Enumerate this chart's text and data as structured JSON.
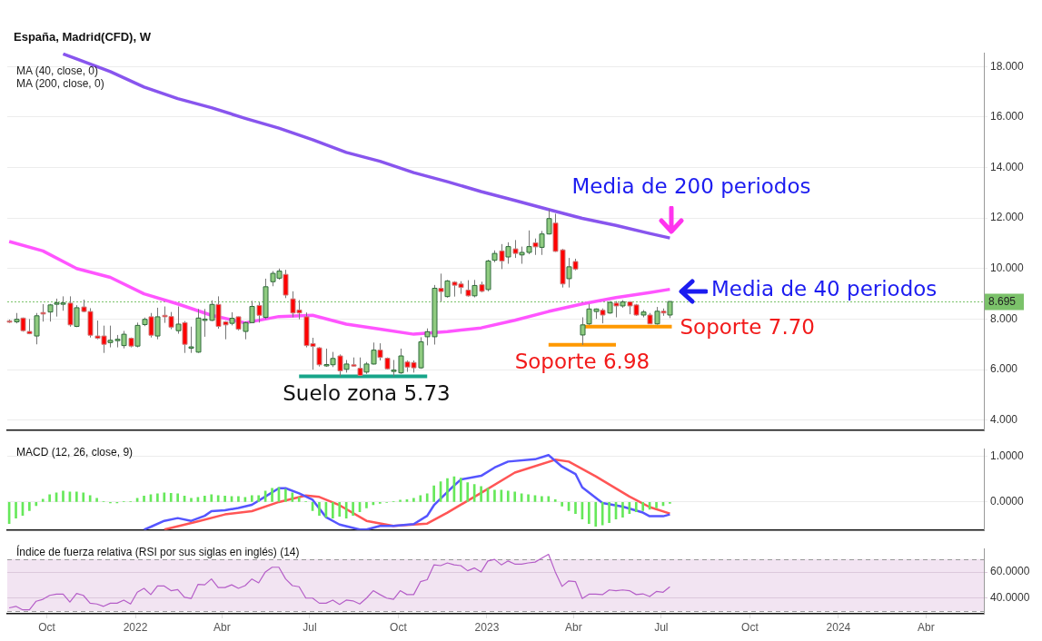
{
  "chart_data": [
    {
      "type": "candlestick",
      "title": "España, Madrid(CFD), W",
      "x": [
        "2021-08-23",
        "2021-08-30",
        "2021-09-06",
        "2021-09-13",
        "2021-09-20",
        "2021-09-27",
        "2021-10-04",
        "2021-10-11",
        "2021-10-18",
        "2021-10-25",
        "2021-11-01",
        "2021-11-08",
        "2021-11-15",
        "2021-11-22",
        "2021-11-29",
        "2021-12-06",
        "2021-12-13",
        "2021-12-20",
        "2021-12-27",
        "2022-01-03",
        "2022-01-10",
        "2022-01-17",
        "2022-01-24",
        "2022-01-31",
        "2022-02-07",
        "2022-02-14",
        "2022-02-21",
        "2022-02-28",
        "2022-03-07",
        "2022-03-14",
        "2022-03-21",
        "2022-03-28",
        "2022-04-04",
        "2022-04-11",
        "2022-04-18",
        "2022-04-25",
        "2022-05-02",
        "2022-05-09",
        "2022-05-16",
        "2022-05-23",
        "2022-05-30",
        "2022-06-06",
        "2022-06-13",
        "2022-06-20",
        "2022-06-27",
        "2022-07-04",
        "2022-07-11",
        "2022-07-18",
        "2022-07-25",
        "2022-08-01",
        "2022-08-08",
        "2022-08-15",
        "2022-08-22",
        "2022-08-29",
        "2022-09-05",
        "2022-09-12",
        "2022-09-19",
        "2022-09-26",
        "2022-10-03",
        "2022-10-10",
        "2022-10-17",
        "2022-10-24",
        "2022-10-31",
        "2022-11-07",
        "2022-11-14",
        "2022-11-21",
        "2022-11-28",
        "2022-12-05",
        "2022-12-12",
        "2022-12-19",
        "2022-12-26",
        "2023-01-02",
        "2023-01-09",
        "2023-01-16",
        "2023-01-23",
        "2023-01-30",
        "2023-02-06",
        "2023-02-13",
        "2023-02-20",
        "2023-02-27",
        "2023-03-06",
        "2023-03-13",
        "2023-03-20",
        "2023-03-27",
        "2023-04-03",
        "2023-04-10",
        "2023-04-17",
        "2023-04-24",
        "2023-05-01",
        "2023-05-08",
        "2023-05-15",
        "2023-05-22",
        "2023-05-29",
        "2023-06-05",
        "2023-06-12",
        "2023-06-19",
        "2023-06-26",
        "2023-07-03",
        "2023-07-10"
      ],
      "ohlc": [
        [
          7.93,
          7.98,
          7.85,
          7.9
        ],
        [
          7.89,
          8.24,
          7.83,
          7.99
        ],
        [
          8.04,
          8.06,
          7.5,
          7.54
        ],
        [
          7.51,
          8.0,
          7.4,
          7.42
        ],
        [
          7.33,
          8.24,
          7.0,
          8.13
        ],
        [
          8.26,
          8.59,
          7.9,
          8.2
        ],
        [
          8.28,
          8.6,
          7.9,
          8.56
        ],
        [
          8.6,
          8.81,
          8.1,
          8.64
        ],
        [
          8.62,
          8.9,
          8.33,
          8.64
        ],
        [
          8.63,
          8.9,
          7.7,
          7.77
        ],
        [
          7.71,
          8.55,
          7.68,
          8.45
        ],
        [
          8.48,
          8.77,
          8.27,
          8.3
        ],
        [
          8.3,
          8.43,
          7.27,
          7.36
        ],
        [
          7.33,
          7.94,
          7.2,
          7.24
        ],
        [
          7.33,
          7.74,
          6.66,
          7.0
        ],
        [
          7.07,
          7.74,
          6.88,
          7.16
        ],
        [
          7.16,
          7.37,
          6.88,
          7.2
        ],
        [
          6.95,
          7.53,
          6.84,
          7.4
        ],
        [
          7.24,
          7.27,
          6.88,
          6.93
        ],
        [
          6.93,
          7.86,
          6.88,
          7.75
        ],
        [
          7.78,
          8.06,
          7.72,
          7.99
        ],
        [
          8.09,
          8.24,
          7.27,
          7.36
        ],
        [
          7.33,
          8.45,
          7.2,
          8.09
        ],
        [
          8.15,
          8.5,
          7.85,
          8.09
        ],
        [
          8.1,
          8.28,
          7.6,
          7.68
        ],
        [
          7.54,
          8.5,
          7.42,
          7.8
        ],
        [
          7.86,
          7.92,
          6.66,
          7.0
        ],
        [
          6.86,
          7.7,
          6.66,
          6.9
        ],
        [
          6.69,
          8.4,
          6.66,
          8.04
        ],
        [
          7.98,
          8.4,
          7.3,
          8.0
        ],
        [
          7.95,
          8.74,
          7.92,
          8.58
        ],
        [
          8.58,
          8.9,
          7.62,
          7.71
        ],
        [
          7.89,
          7.92,
          7.2,
          7.77
        ],
        [
          7.83,
          8.27,
          7.75,
          8.03
        ],
        [
          8.09,
          8.1,
          7.55,
          7.6
        ],
        [
          7.51,
          7.9,
          7.2,
          7.86
        ],
        [
          7.86,
          8.72,
          7.84,
          8.5
        ],
        [
          8.54,
          8.66,
          7.86,
          8.15
        ],
        [
          8.07,
          9.6,
          8.0,
          9.28
        ],
        [
          9.48,
          9.9,
          9.3,
          9.81
        ],
        [
          9.62,
          10.0,
          9.56,
          9.9
        ],
        [
          9.77,
          9.95,
          8.83,
          8.95
        ],
        [
          8.8,
          9.1,
          8.07,
          8.24
        ],
        [
          8.36,
          8.75,
          7.99,
          8.24
        ],
        [
          8.09,
          8.26,
          6.88,
          6.95
        ],
        [
          7.03,
          7.26,
          6.0,
          6.92
        ],
        [
          6.86,
          6.89,
          6.12,
          6.19
        ],
        [
          6.19,
          6.83,
          6.11,
          6.2
        ],
        [
          6.19,
          6.7,
          6.1,
          6.44
        ],
        [
          6.54,
          6.6,
          5.73,
          5.95
        ],
        [
          6.01,
          6.38,
          5.88,
          6.22
        ],
        [
          6.19,
          6.48,
          6.12,
          6.15
        ],
        [
          6.05,
          6.48,
          5.73,
          5.77
        ],
        [
          5.9,
          6.3,
          5.83,
          6.22
        ],
        [
          6.22,
          7.07,
          6.2,
          6.77
        ],
        [
          6.77,
          7.04,
          6.36,
          6.48
        ],
        [
          6.45,
          6.48,
          6.01,
          6.03
        ],
        [
          5.97,
          6.38,
          5.73,
          5.98
        ],
        [
          5.87,
          6.83,
          5.83,
          6.54
        ],
        [
          6.3,
          6.36,
          5.91,
          6.1
        ],
        [
          6.28,
          6.36,
          5.88,
          6.07
        ],
        [
          6.07,
          7.28,
          6.03,
          7.1
        ],
        [
          7.3,
          7.63,
          6.96,
          7.5
        ],
        [
          7.3,
          9.35,
          6.99,
          9.22
        ],
        [
          9.22,
          9.8,
          8.7,
          9.09
        ],
        [
          8.89,
          9.55,
          8.85,
          9.51
        ],
        [
          9.46,
          9.5,
          8.89,
          9.34
        ],
        [
          9.39,
          9.5,
          9.0,
          9.25
        ],
        [
          9.15,
          9.54,
          8.89,
          8.92
        ],
        [
          8.92,
          9.55,
          8.86,
          9.33
        ],
        [
          9.36,
          9.48,
          9.06,
          9.1
        ],
        [
          9.17,
          10.35,
          9.1,
          10.3
        ],
        [
          10.33,
          10.72,
          10.25,
          10.6
        ],
        [
          10.7,
          10.97,
          9.98,
          10.3
        ],
        [
          10.46,
          11.04,
          10.19,
          10.87
        ],
        [
          10.78,
          11.13,
          10.42,
          10.6
        ],
        [
          10.54,
          10.87,
          10.19,
          10.64
        ],
        [
          10.64,
          11.51,
          10.57,
          10.87
        ],
        [
          11.02,
          11.19,
          10.54,
          10.86
        ],
        [
          10.84,
          11.49,
          10.54,
          11.37
        ],
        [
          11.37,
          12.35,
          11.35,
          11.98
        ],
        [
          11.8,
          12.17,
          10.66,
          10.68
        ],
        [
          10.74,
          10.78,
          9.25,
          9.39
        ],
        [
          9.6,
          10.42,
          9.25,
          10.07
        ],
        [
          10.28,
          10.39,
          9.93,
          9.98
        ],
        [
          7.37,
          8.07,
          6.98,
          7.77
        ],
        [
          7.81,
          8.6,
          7.77,
          8.4
        ],
        [
          8.3,
          8.42,
          8.01,
          8.4
        ],
        [
          8.35,
          8.42,
          7.83,
          8.16
        ],
        [
          8.24,
          8.71,
          8.21,
          8.66
        ],
        [
          8.63,
          8.71,
          8.07,
          8.52
        ],
        [
          8.52,
          8.75,
          8.45,
          8.68
        ],
        [
          8.68,
          8.71,
          8.19,
          8.52
        ],
        [
          8.56,
          8.6,
          8.13,
          8.16
        ],
        [
          8.16,
          8.36,
          8.07,
          8.28
        ],
        [
          8.16,
          8.24,
          7.81,
          7.81
        ],
        [
          7.81,
          8.48,
          7.78,
          8.31
        ],
        [
          8.31,
          8.42,
          8.13,
          8.24
        ],
        [
          8.16,
          8.71,
          8.04,
          8.695
        ]
      ],
      "series": [
        {
          "type": "line",
          "color": "#ff55ff",
          "x": [
            "2021-08-23",
            "2021-09-27",
            "2021-11-01",
            "2021-12-06",
            "2022-01-10",
            "2022-02-14",
            "2022-03-21",
            "2022-04-25",
            "2022-05-30",
            "2022-07-04",
            "2022-08-08",
            "2022-09-12",
            "2022-10-17",
            "2022-11-21",
            "2022-12-26",
            "2023-01-30",
            "2023-03-06",
            "2023-04-10",
            "2023-05-15",
            "2023-06-19",
            "2023-07-10"
          ],
          "values": [
            11.07,
            10.7,
            10.0,
            9.65,
            9.0,
            8.6,
            8.15,
            7.85,
            8.1,
            8.15,
            7.8,
            7.6,
            7.4,
            7.5,
            7.65,
            7.95,
            8.3,
            8.6,
            8.85,
            9.05,
            9.18
          ]
        },
        {
          "type": "line",
          "color": "#8855ee",
          "x": [
            "2021-10-18",
            "2021-11-01",
            "2021-12-06",
            "2022-01-10",
            "2022-02-14",
            "2022-03-21",
            "2022-04-25",
            "2022-05-30",
            "2022-07-04",
            "2022-08-08",
            "2022-09-12",
            "2022-10-17",
            "2022-11-21",
            "2022-12-26",
            "2023-01-30",
            "2023-03-06",
            "2023-04-10",
            "2023-05-15",
            "2023-06-19",
            "2023-07-10"
          ],
          "values": [
            18.5,
            18.3,
            17.8,
            17.19,
            16.73,
            16.37,
            15.95,
            15.56,
            15.1,
            14.6,
            14.25,
            13.8,
            13.44,
            13.05,
            12.7,
            12.34,
            11.99,
            11.71,
            11.39,
            11.21
          ]
        },
        {
          "type": "line",
          "color": "#17a589",
          "x": [
            "2022-06-20",
            "2022-10-31"
          ],
          "values": [
            5.73,
            5.73
          ]
        },
        {
          "type": "line",
          "color": "#ff9900",
          "x": [
            "2023-03-06",
            "2023-05-15"
          ],
          "values": [
            6.98,
            6.98
          ]
        },
        {
          "type": "line",
          "color": "#ff9900",
          "x": [
            "2023-04-10",
            "2023-07-12"
          ],
          "values": [
            7.7,
            7.7
          ]
        }
      ],
      "ref_lines": [
        {
          "axis": "y",
          "value": 8.695,
          "label": "8.695",
          "color": "#7bc26a",
          "line_style": "dotted"
        }
      ],
      "annotations": [
        "MA (40, close, 0)",
        "MA (200, close, 0)",
        "Media de 200 periodos",
        "Media de 40 periodos",
        {
          "text": "Suelo zona 5.73",
          "x": "2022-08-29",
          "y": 5.73
        },
        {
          "text": "Soporte 6.98",
          "x": "2023-04-10",
          "y": 6.98
        },
        {
          "text": "Soporte 7.70",
          "x": "2023-07-12",
          "y": 7.7
        }
      ],
      "xlim": [
        "2021-08-21",
        "2024-05-31"
      ],
      "ylim": [
        3.6,
        18.55
      ],
      "yticks": [
        {
          "value": 4,
          "label": "4.000"
        },
        {
          "value": 6,
          "label": "6.000"
        },
        {
          "value": 8,
          "label": "8.000"
        },
        {
          "value": 10,
          "label": "10.000"
        },
        {
          "value": 12,
          "label": "12.000"
        },
        {
          "value": 14,
          "label": "14.000"
        },
        {
          "value": 16,
          "label": "16.000"
        },
        {
          "value": 18,
          "label": "18.000"
        }
      ],
      "grid": "y",
      "tick_labels": "y"
    },
    {
      "type": "bar",
      "title": "MACD (12, 26, close, 9)",
      "x": [
        "2021-08-23",
        "2021-08-30",
        "2021-09-06",
        "2021-09-13",
        "2021-09-20",
        "2021-09-27",
        "2021-10-04",
        "2021-10-11",
        "2021-10-18",
        "2021-10-25",
        "2021-11-01",
        "2021-11-08",
        "2021-11-15",
        "2021-11-22",
        "2021-11-29",
        "2021-12-06",
        "2021-12-13",
        "2021-12-20",
        "2021-12-27",
        "2022-01-03",
        "2022-01-10",
        "2022-01-17",
        "2022-01-24",
        "2022-01-31",
        "2022-02-07",
        "2022-02-14",
        "2022-02-21",
        "2022-02-28",
        "2022-03-07",
        "2022-03-14",
        "2022-03-21",
        "2022-03-28",
        "2022-04-04",
        "2022-04-11",
        "2022-04-18",
        "2022-04-25",
        "2022-05-02",
        "2022-05-09",
        "2022-05-16",
        "2022-05-23",
        "2022-05-30",
        "2022-06-06",
        "2022-06-13",
        "2022-06-20",
        "2022-06-27",
        "2022-07-04",
        "2022-07-11",
        "2022-07-18",
        "2022-07-25",
        "2022-08-01",
        "2022-08-08",
        "2022-08-15",
        "2022-08-22",
        "2022-08-29",
        "2022-09-05",
        "2022-09-12",
        "2022-09-19",
        "2022-09-26",
        "2022-10-03",
        "2022-10-10",
        "2022-10-17",
        "2022-10-24",
        "2022-10-31",
        "2022-11-07",
        "2022-11-14",
        "2022-11-21",
        "2022-11-28",
        "2022-12-05",
        "2022-12-12",
        "2022-12-19",
        "2022-12-26",
        "2023-01-02",
        "2023-01-09",
        "2023-01-16",
        "2023-01-23",
        "2023-01-30",
        "2023-02-06",
        "2023-02-13",
        "2023-02-20",
        "2023-02-27",
        "2023-03-06",
        "2023-03-13",
        "2023-03-20",
        "2023-03-27",
        "2023-04-03",
        "2023-04-10",
        "2023-04-17",
        "2023-04-24",
        "2023-05-01",
        "2023-05-08",
        "2023-05-15",
        "2023-05-22",
        "2023-05-29",
        "2023-06-05",
        "2023-06-12",
        "2023-06-19",
        "2023-06-26",
        "2023-07-03",
        "2023-07-10"
      ],
      "series": [
        {
          "color": "#66e85a",
          "values": [
            -0.47,
            -0.35,
            -0.29,
            -0.19,
            -0.08,
            0.06,
            0.16,
            0.2,
            0.24,
            0.22,
            0.22,
            0.2,
            0.14,
            0.08,
            0.01,
            -0.02,
            -0.02,
            0.01,
            0.01,
            0.08,
            0.13,
            0.16,
            0.18,
            0.2,
            0.19,
            0.18,
            0.13,
            0.08,
            0.1,
            0.13,
            0.16,
            0.14,
            0.13,
            0.12,
            0.12,
            0.1,
            0.14,
            0.14,
            0.24,
            0.3,
            0.32,
            0.28,
            0.2,
            0.1,
            0.01,
            -0.19,
            -0.29,
            -0.33,
            -0.35,
            -0.31,
            -0.35,
            -0.29,
            -0.21,
            -0.13,
            -0.06,
            -0.03,
            -0.01,
            0.01,
            0.04,
            0.05,
            0.08,
            0.14,
            0.18,
            0.35,
            0.44,
            0.51,
            0.55,
            0.52,
            0.42,
            0.38,
            0.34,
            0.3,
            0.26,
            0.26,
            0.24,
            0.22,
            0.18,
            0.16,
            0.14,
            0.12,
            0.12,
            0.05,
            -0.09,
            -0.19,
            -0.25,
            -0.37,
            -0.47,
            -0.53,
            -0.5,
            -0.45,
            -0.37,
            -0.33,
            -0.25,
            -0.21,
            -0.19,
            -0.16,
            -0.13,
            -0.08,
            -0.03
          ]
        },
        {
          "type": "line",
          "color": "#5555ff",
          "x": [
            "2022-01-10",
            "2022-01-17",
            "2022-01-31",
            "2022-02-14",
            "2022-02-28",
            "2022-03-14",
            "2022-03-21",
            "2022-04-04",
            "2022-04-18",
            "2022-05-02",
            "2022-05-16",
            "2022-05-30",
            "2022-06-06",
            "2022-06-20",
            "2022-07-04",
            "2022-07-18",
            "2022-08-01",
            "2022-08-22",
            "2022-08-29",
            "2022-09-12",
            "2022-09-26",
            "2022-10-17",
            "2022-10-31",
            "2022-11-07",
            "2022-11-28",
            "2022-12-05",
            "2022-12-26",
            "2023-01-09",
            "2023-01-23",
            "2023-02-20",
            "2023-03-06",
            "2023-03-20",
            "2023-04-03",
            "2023-04-10",
            "2023-05-01",
            "2023-05-22",
            "2023-06-12",
            "2023-06-19",
            "2023-07-03",
            "2023-07-10"
          ],
          "values": [
            -0.6,
            -0.54,
            -0.41,
            -0.35,
            -0.41,
            -0.3,
            -0.2,
            -0.18,
            -0.13,
            -0.06,
            0.12,
            0.3,
            0.3,
            0.19,
            0.05,
            -0.33,
            -0.49,
            -0.6,
            -0.6,
            -0.52,
            -0.52,
            -0.48,
            -0.3,
            -0.07,
            0.36,
            0.49,
            0.57,
            0.75,
            0.88,
            0.93,
            1.02,
            0.77,
            0.61,
            0.32,
            -0.02,
            -0.1,
            -0.23,
            -0.31,
            -0.31,
            -0.27
          ]
        },
        {
          "type": "line",
          "color": "#ff5555",
          "x": [
            "2022-01-31",
            "2022-03-07",
            "2022-04-04",
            "2022-05-02",
            "2022-05-30",
            "2022-06-27",
            "2022-07-11",
            "2022-08-01",
            "2022-08-29",
            "2022-09-26",
            "2022-10-31",
            "2022-11-21",
            "2022-12-26",
            "2023-01-30",
            "2023-03-13",
            "2023-03-27",
            "2023-04-24",
            "2023-05-29",
            "2023-06-19",
            "2023-07-10"
          ],
          "values": [
            -0.6,
            -0.42,
            -0.27,
            -0.2,
            0.0,
            0.14,
            0.11,
            -0.07,
            -0.41,
            -0.52,
            -0.47,
            -0.23,
            0.2,
            0.64,
            0.92,
            0.88,
            0.56,
            0.12,
            -0.11,
            -0.25
          ]
        }
      ],
      "xlim": [
        "2021-08-21",
        "2024-05-31"
      ],
      "ylim": [
        -0.61,
        1.16
      ],
      "yticks": [
        {
          "value": 0,
          "label": "0.0000"
        },
        {
          "value": 1,
          "label": "1.0000"
        }
      ],
      "grid": "y",
      "tick_labels": "y"
    },
    {
      "type": "line",
      "title": "Índice de fuerza relativa (RSI por sus siglas en inglés) (14)",
      "color": "#b55ec8",
      "x": [
        "2021-08-23",
        "2021-08-30",
        "2021-09-06",
        "2021-09-13",
        "2021-09-20",
        "2021-09-27",
        "2021-10-04",
        "2021-10-11",
        "2021-10-18",
        "2021-10-25",
        "2021-11-01",
        "2021-11-08",
        "2021-11-15",
        "2021-11-22",
        "2021-11-29",
        "2021-12-06",
        "2021-12-13",
        "2021-12-20",
        "2021-12-27",
        "2022-01-03",
        "2022-01-10",
        "2022-01-17",
        "2022-01-24",
        "2022-01-31",
        "2022-02-07",
        "2022-02-14",
        "2022-02-21",
        "2022-02-28",
        "2022-03-07",
        "2022-03-14",
        "2022-03-21",
        "2022-03-28",
        "2022-04-04",
        "2022-04-11",
        "2022-04-18",
        "2022-04-25",
        "2022-05-02",
        "2022-05-09",
        "2022-05-16",
        "2022-05-23",
        "2022-05-30",
        "2022-06-06",
        "2022-06-13",
        "2022-06-20",
        "2022-06-27",
        "2022-07-04",
        "2022-07-11",
        "2022-07-18",
        "2022-07-25",
        "2022-08-01",
        "2022-08-08",
        "2022-08-15",
        "2022-08-22",
        "2022-08-29",
        "2022-09-05",
        "2022-09-12",
        "2022-09-19",
        "2022-09-26",
        "2022-10-03",
        "2022-10-10",
        "2022-10-17",
        "2022-10-24",
        "2022-10-31",
        "2022-11-07",
        "2022-11-14",
        "2022-11-21",
        "2022-11-28",
        "2022-12-05",
        "2022-12-12",
        "2022-12-19",
        "2022-12-26",
        "2023-01-02",
        "2023-01-09",
        "2023-01-16",
        "2023-01-23",
        "2023-01-30",
        "2023-02-06",
        "2023-02-13",
        "2023-02-20",
        "2023-02-27",
        "2023-03-06",
        "2023-03-13",
        "2023-03-20",
        "2023-03-27",
        "2023-04-03",
        "2023-04-10",
        "2023-04-17",
        "2023-04-24",
        "2023-05-01",
        "2023-05-08",
        "2023-05-15",
        "2023-05-22",
        "2023-05-29",
        "2023-06-05",
        "2023-06-12",
        "2023-06-19",
        "2023-06-26",
        "2023-07-03",
        "2023-07-10"
      ],
      "values": [
        32.5,
        33.7,
        31,
        31,
        37.6,
        39.1,
        42.1,
        43,
        43,
        37,
        43.6,
        42.1,
        36.1,
        35.5,
        33.7,
        36.1,
        36.1,
        38.5,
        35.5,
        44.5,
        47.5,
        42.7,
        49.3,
        49.3,
        45.7,
        46.6,
        40.6,
        39.7,
        50.5,
        50.2,
        54.7,
        48.1,
        48.1,
        50.2,
        47.5,
        49.6,
        54.7,
        51.7,
        60.1,
        63.7,
        63.7,
        54.7,
        49.6,
        48.7,
        40,
        40,
        36.1,
        36.1,
        38.5,
        35.2,
        38.5,
        37.9,
        35.5,
        40,
        45.7,
        42.7,
        40,
        39.1,
        45.7,
        42.7,
        42.7,
        52.6,
        54.1,
        65.5,
        64.9,
        67,
        65.5,
        64.9,
        61,
        63.1,
        60.1,
        68.5,
        69.7,
        65.5,
        68.5,
        66.1,
        66.1,
        67,
        67.6,
        70.6,
        73.6,
        60.1,
        49,
        53.2,
        52.6,
        39.7,
        43,
        43,
        42.7,
        46.3,
        45.7,
        46.3,
        45.7,
        42.7,
        43.3,
        41.2,
        45.1,
        44.5,
        48.7
      ],
      "bands": [
        {
          "axis": "y",
          "from": 30,
          "to": 70,
          "color": "#f2e4f2"
        }
      ],
      "ref_lines": [
        {
          "axis": "y",
          "value": 70,
          "color": "#999999",
          "line_style": "dashed"
        },
        {
          "axis": "y",
          "value": 30,
          "color": "#999999",
          "line_style": "dashed"
        }
      ],
      "xlim": [
        "2021-08-21",
        "2024-05-31"
      ],
      "xticks": [
        {
          "value": "2021-10-01",
          "label": "Oct"
        },
        {
          "value": "2022-01-01",
          "label": "2022"
        },
        {
          "value": "2022-04-01",
          "label": "Abr"
        },
        {
          "value": "2022-07-01",
          "label": "Jul"
        },
        {
          "value": "2022-10-01",
          "label": "Oct"
        },
        {
          "value": "2023-01-01",
          "label": "2023"
        },
        {
          "value": "2023-04-01",
          "label": "Abr"
        },
        {
          "value": "2023-07-01",
          "label": "Jul"
        },
        {
          "value": "2023-10-01",
          "label": "Oct"
        },
        {
          "value": "2024-01-01",
          "label": "2024"
        },
        {
          "value": "2024-04-01",
          "label": "Abr"
        }
      ],
      "ylim": [
        28,
        78
      ],
      "yticks": [
        {
          "value": 40,
          "label": "40.0000"
        },
        {
          "value": 60,
          "label": "60.0000"
        }
      ],
      "grid": "y"
    }
  ]
}
